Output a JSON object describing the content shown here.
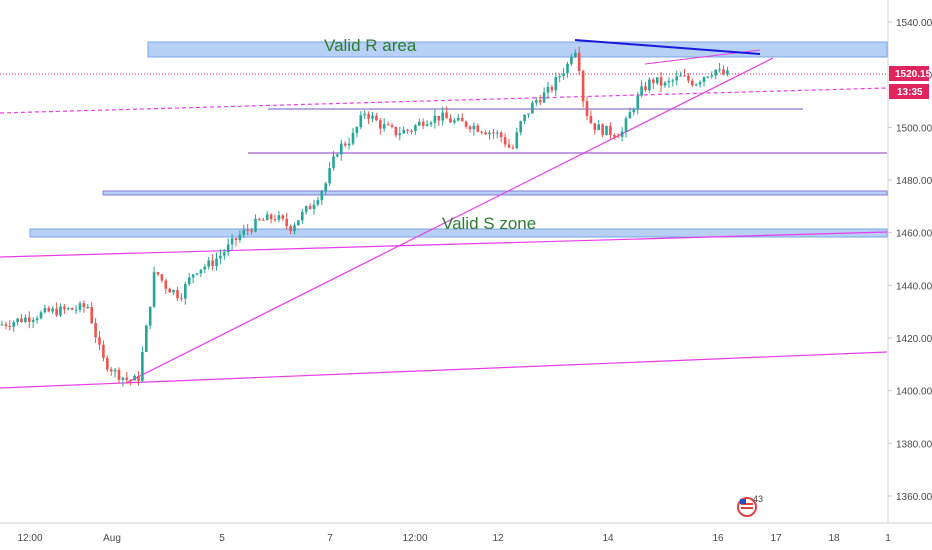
{
  "chart_data": {
    "type": "candlestick",
    "title": "",
    "y_axis": {
      "ticks": [
        1360,
        1380,
        1400,
        1420,
        1440,
        1460,
        1480,
        1500,
        1520,
        1540
      ],
      "tick_labels": [
        "1360.00",
        "1380.00",
        "1400.00",
        "1420.00",
        "1440.00",
        "1460.00",
        "1480.00",
        "1500.00",
        "1520.00",
        "1540.00"
      ],
      "range": [
        1352,
        1547
      ]
    },
    "x_axis": {
      "tick_labels": [
        "12:00",
        "Aug",
        "5",
        "7",
        "12:00",
        "12",
        "14",
        "16",
        "17",
        "18",
        "1"
      ]
    },
    "price_tag": {
      "value": 1520.15,
      "label": "1520.15",
      "countdown": "13:35",
      "color": "#e0245e"
    },
    "annotations": [
      {
        "text": "Valid R area"
      },
      {
        "text": "Valid S zone"
      }
    ],
    "zones": [
      {
        "name": "resistance-zone",
        "low": 1526,
        "high": 1532,
        "color": "#a9c7f2"
      },
      {
        "name": "support-zone",
        "low": 1458.5,
        "high": 1461.5,
        "color": "#a9c7f2"
      }
    ],
    "horizontal_levels": [
      1507,
      1490,
      1475
    ],
    "candles": [],
    "colors": {
      "up": "#26a69a",
      "down": "#ef5350",
      "trendline": "#ea3bea",
      "wedge_top": "#1a1adb"
    }
  },
  "badge": {
    "text": "43",
    "icon": "us-flag-badge-icon"
  }
}
